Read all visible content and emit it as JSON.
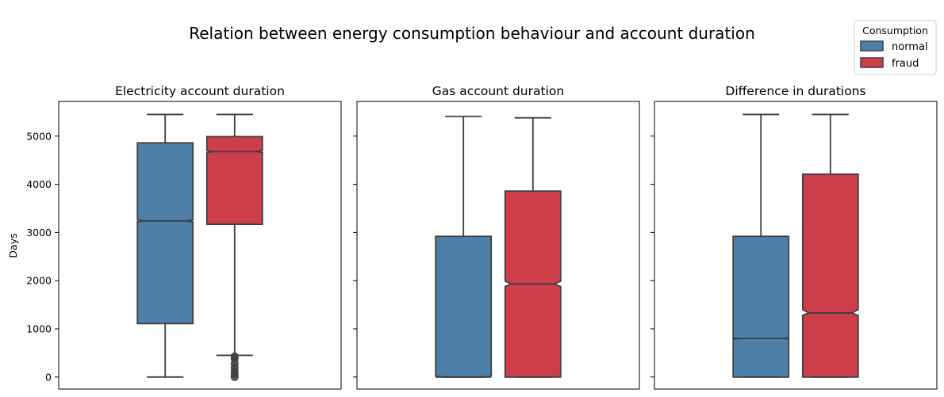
{
  "chart_data": {
    "type": "box",
    "title": "Relation between energy consumption behaviour and account duration",
    "ylabel": "Days",
    "ylim": [
      -250,
      5720
    ],
    "yticks": [
      0,
      1000,
      2000,
      3000,
      4000,
      5000
    ],
    "legend": {
      "title": "Consumption",
      "placement": "top-right",
      "entries": [
        {
          "label": "normal",
          "color": "#4d7fa8"
        },
        {
          "label": "fraud",
          "color": "#ce3d4a"
        }
      ]
    },
    "colors": {
      "normal": "#4d7fa8",
      "fraud": "#ce3d4a",
      "line": "#3f3f3f"
    },
    "panels": [
      {
        "title": "Electricity account duration",
        "series": [
          {
            "name": "normal",
            "whislo": 0,
            "q1": 1110,
            "med": 3240,
            "notch_lo": 3220,
            "notch_hi": 3260,
            "q3": 4860,
            "whishi": 5450,
            "fliers": []
          },
          {
            "name": "fraud",
            "whislo": 450,
            "q1": 3170,
            "med": 4680,
            "notch_lo": 4660,
            "notch_hi": 4700,
            "q3": 4990,
            "whishi": 5450,
            "fliers": [
              0,
              60,
              120,
              200,
              280,
              380,
              430
            ]
          }
        ]
      },
      {
        "title": "Gas account duration",
        "series": [
          {
            "name": "normal",
            "whislo": 0,
            "q1": 0,
            "med": 0,
            "notch_lo": 0,
            "notch_hi": 20,
            "q3": 2920,
            "whishi": 5410,
            "fliers": []
          },
          {
            "name": "fraud",
            "whislo": 0,
            "q1": 0,
            "med": 1930,
            "notch_lo": 1880,
            "notch_hi": 1990,
            "q3": 3860,
            "whishi": 5380,
            "fliers": []
          }
        ]
      },
      {
        "title": "Difference in durations",
        "series": [
          {
            "name": "normal",
            "whislo": 0,
            "q1": 0,
            "med": 800,
            "notch_lo": 790,
            "notch_hi": 810,
            "q3": 2920,
            "whishi": 5450,
            "fliers": []
          },
          {
            "name": "fraud",
            "whislo": 0,
            "q1": 0,
            "med": 1330,
            "notch_lo": 1280,
            "notch_hi": 1400,
            "q3": 4210,
            "whishi": 5450,
            "fliers": []
          }
        ]
      }
    ]
  }
}
